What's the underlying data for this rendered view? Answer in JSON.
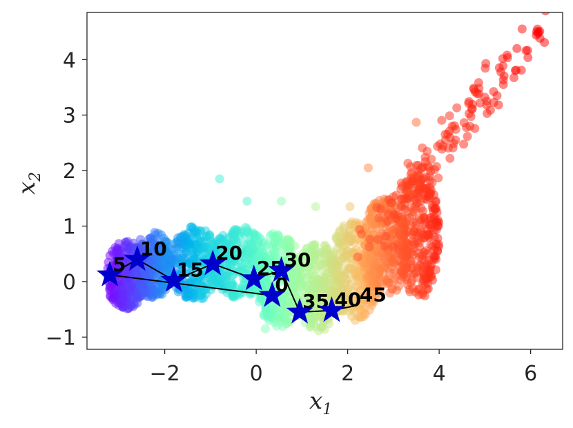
{
  "chart_data": {
    "type": "scatter",
    "xlabel": "x",
    "xlabel_sub": "1",
    "ylabel": "x",
    "ylabel_sub": "2",
    "xlim": [
      -3.7,
      6.7
    ],
    "ylim": [
      -1.22,
      4.85
    ],
    "xticks": [
      -2,
      0,
      2,
      4,
      6
    ],
    "yticks": [
      -1,
      0,
      1,
      2,
      3,
      4
    ],
    "xtick_labels": [
      "−2",
      "0",
      "2",
      "4",
      "6"
    ],
    "ytick_labels": [
      "−1",
      "0",
      "1",
      "2",
      "3",
      "4"
    ],
    "grid": false,
    "colormap": "rainbow",
    "point_alpha": 0.5,
    "colors": {
      "star": "#0000cc",
      "path": "#000000",
      "axes": "#262626"
    },
    "cloud_segments": [
      {
        "x": [
          -3.3,
          -2.4
        ],
        "y": [
          -0.5,
          0.75
        ],
        "hue": [
          0.0,
          0.12
        ]
      },
      {
        "x": [
          -2.7,
          -1.8
        ],
        "y": [
          -0.3,
          0.9
        ],
        "hue": [
          0.08,
          0.22
        ]
      },
      {
        "x": [
          -1.9,
          -0.8
        ],
        "y": [
          -0.35,
          1.0
        ],
        "hue": [
          0.18,
          0.35
        ]
      },
      {
        "x": [
          -1.0,
          0.3
        ],
        "y": [
          -0.3,
          1.0
        ],
        "hue": [
          0.3,
          0.45
        ]
      },
      {
        "x": [
          0.0,
          1.0
        ],
        "y": [
          -0.85,
          0.9
        ],
        "hue": [
          0.42,
          0.58
        ]
      },
      {
        "x": [
          0.8,
          1.9
        ],
        "y": [
          -0.9,
          0.7
        ],
        "hue": [
          0.55,
          0.68
        ]
      },
      {
        "x": [
          1.6,
          2.7
        ],
        "y": [
          -0.7,
          1.1
        ],
        "hue": [
          0.65,
          0.8
        ]
      },
      {
        "x": [
          2.3,
          3.3
        ],
        "y": [
          -0.3,
          1.5
        ],
        "hue": [
          0.78,
          0.9
        ]
      },
      {
        "x": [
          3.1,
          4.0
        ],
        "y": [
          -0.35,
          2.1
        ],
        "hue": [
          0.88,
          0.96
        ]
      },
      {
        "x": [
          2.5,
          6.2
        ],
        "y": [
          0.8,
          4.55
        ],
        "hue": [
          0.9,
          1.0
        ],
        "diagonal": true
      }
    ],
    "outliers": [
      {
        "x": -0.8,
        "y": 1.85,
        "hue": 0.38
      },
      {
        "x": 2.05,
        "y": 1.35,
        "hue": 0.72
      },
      {
        "x": 0.55,
        "y": 1.45,
        "hue": 0.52
      },
      {
        "x": 3.5,
        "y": 2.87,
        "hue": 0.86
      },
      {
        "x": -0.2,
        "y": 1.45,
        "hue": 0.4
      },
      {
        "x": 1.3,
        "y": 1.35,
        "hue": 0.6
      },
      {
        "x": 2.45,
        "y": 2.05,
        "hue": 0.82
      },
      {
        "x": 6.15,
        "y": 4.55,
        "hue": 1.0
      },
      {
        "x": 5.7,
        "y": 4.2,
        "hue": 1.0
      },
      {
        "x": 0.2,
        "y": -0.85,
        "hue": 0.5
      }
    ],
    "trajectory": [
      {
        "label": "0",
        "x": 0.35,
        "y": -0.25
      },
      {
        "label": "5",
        "x": -3.2,
        "y": 0.12
      },
      {
        "label": "10",
        "x": -2.6,
        "y": 0.4
      },
      {
        "label": "15",
        "x": -1.8,
        "y": 0.02
      },
      {
        "label": "20",
        "x": -0.95,
        "y": 0.32
      },
      {
        "label": "25",
        "x": -0.05,
        "y": 0.05
      },
      {
        "label": "30",
        "x": 0.55,
        "y": 0.2
      },
      {
        "label": "35",
        "x": 0.95,
        "y": -0.55
      },
      {
        "label": "40",
        "x": 1.65,
        "y": -0.52
      },
      {
        "label": "45",
        "x": 2.2,
        "y": -0.43,
        "no_star": true
      }
    ]
  }
}
